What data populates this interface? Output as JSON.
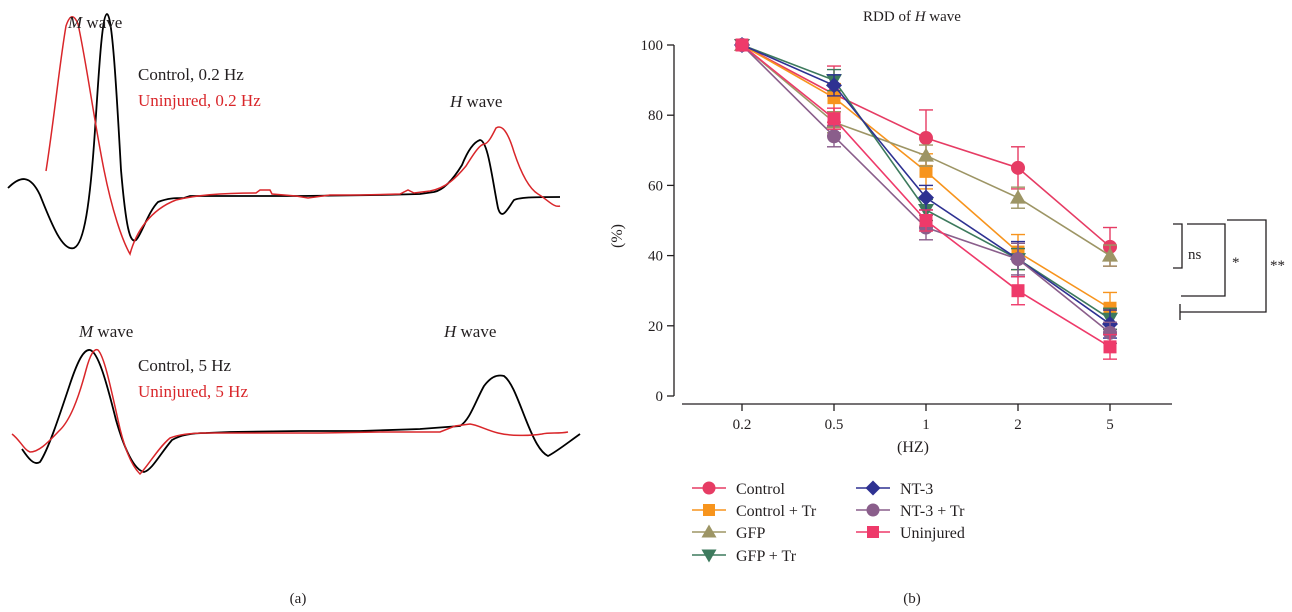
{
  "panel_a": {
    "label": "(a)",
    "top": {
      "m_wave_italic": "M",
      "m_wave_text": " wave",
      "h_wave_italic": "H",
      "h_wave_text": " wave",
      "legend_control": "Control, 0.2 Hz",
      "legend_uninjured": "Uninjured, 0.2 Hz"
    },
    "bottom": {
      "m_wave_italic": "M",
      "m_wave_text": " wave",
      "h_wave_italic": "H",
      "h_wave_text": " wave",
      "legend_control": "Control, 5 Hz",
      "legend_uninjured": "Uninjured, 5 Hz"
    },
    "colors": {
      "control": "#000000",
      "uninjured": "#d9262a"
    }
  },
  "panel_b": {
    "label": "(b)",
    "significance": [
      "ns",
      "*",
      "**"
    ]
  },
  "chart_data": {
    "type": "line",
    "title_prefix": "RDD of ",
    "title_italic": "H",
    "title_suffix": " wave",
    "xlabel": "(HZ)",
    "ylabel": "(%)",
    "categories": [
      "0.2",
      "0.5",
      "1",
      "2",
      "5"
    ],
    "ylim": [
      0,
      100
    ],
    "yticks": [
      0,
      20,
      40,
      60,
      80,
      100
    ],
    "grid": false,
    "legend_position": "bottom",
    "series": [
      {
        "name": "Control",
        "color": "#e63c64",
        "marker": "circle",
        "values": [
          100,
          86,
          73.5,
          65,
          42.5
        ],
        "errors": [
          0,
          8,
          8,
          6,
          5.5
        ]
      },
      {
        "name": "Control + Tr",
        "color": "#f7941d",
        "marker": "square",
        "values": [
          100,
          85,
          64,
          41,
          25
        ],
        "errors": [
          0,
          4,
          5,
          5,
          4.5
        ]
      },
      {
        "name": "GFP",
        "color": "#9d9565",
        "marker": "triangle-up",
        "values": [
          100,
          78,
          68.5,
          56.5,
          40
        ],
        "errors": [
          0,
          3,
          3,
          3,
          3
        ]
      },
      {
        "name": "GFP + Tr",
        "color": "#3d7a5d",
        "marker": "triangle-down",
        "values": [
          100,
          90,
          53,
          39,
          22
        ],
        "errors": [
          0,
          3,
          3,
          3,
          3
        ]
      },
      {
        "name": "NT-3",
        "color": "#2e3192",
        "marker": "diamond",
        "values": [
          100,
          88.5,
          56.5,
          39,
          20.5
        ],
        "errors": [
          0,
          3,
          3.5,
          5,
          4
        ]
      },
      {
        "name": "NT-3 + Tr",
        "color": "#8a5e8b",
        "marker": "circle",
        "values": [
          100,
          74,
          48,
          39,
          18
        ],
        "errors": [
          0,
          3,
          3.5,
          4.5,
          3
        ]
      },
      {
        "name": "Uninjured",
        "color": "#ee3a6a",
        "marker": "square",
        "values": [
          100,
          79,
          50,
          30,
          14
        ],
        "errors": [
          0,
          3,
          3,
          4,
          3.5
        ]
      }
    ]
  }
}
